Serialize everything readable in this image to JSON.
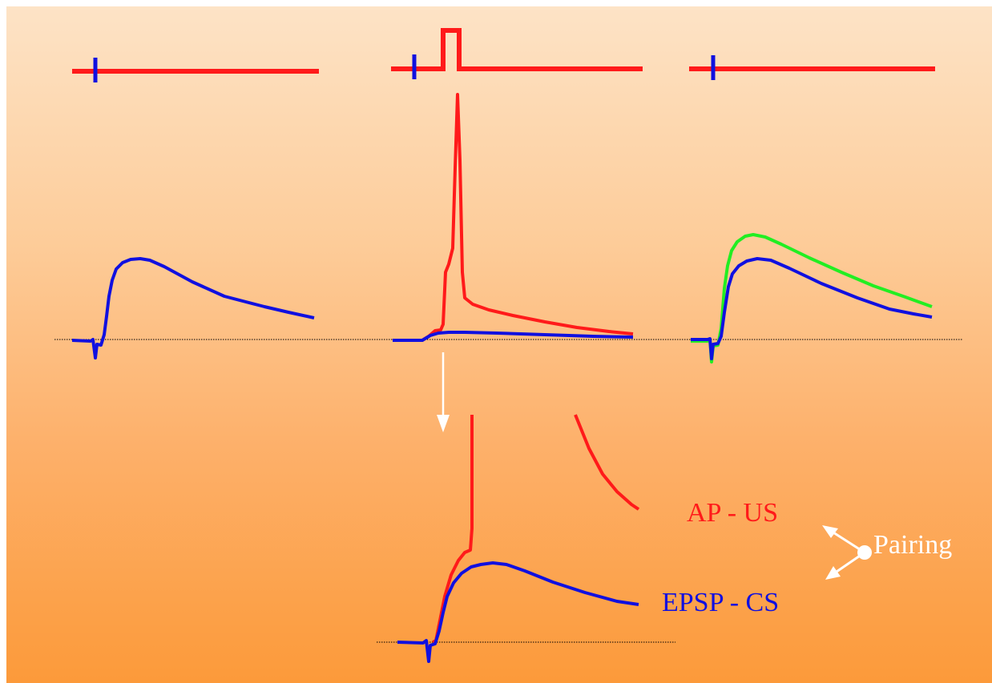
{
  "labels": {
    "ap_us": "AP - US",
    "epsp_cs": "EPSP - CS",
    "pairing": "Pairing"
  },
  "colors": {
    "us_trace": "#ff1a1a",
    "cs_trace": "#1010e0",
    "post_pairing_trace": "#22ee22",
    "arrows": "#ffffff",
    "baseline": "#000000",
    "background_top": "#fde3c6",
    "background_bottom": "#fc9a3a"
  },
  "panels": [
    {
      "role": "before-pairing",
      "stimulus": "CS only",
      "traces": [
        "cs"
      ]
    },
    {
      "role": "pairing",
      "stimulus": "CS + current step",
      "traces": [
        "us",
        "cs"
      ]
    },
    {
      "role": "after-pairing",
      "stimulus": "CS only",
      "traces": [
        "cs",
        "post_pairing"
      ]
    }
  ],
  "inset": {
    "role": "expanded-view-of-pairing",
    "traces": [
      "us",
      "cs"
    ]
  }
}
